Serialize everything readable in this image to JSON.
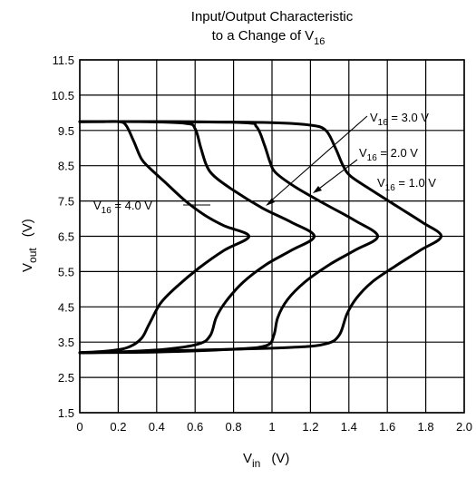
{
  "chart_data": {
    "type": "line",
    "title": {
      "line1": "Input/Output Characteristic",
      "line2_prefix": "to a Change of V",
      "line2_sub": "16"
    },
    "xlabel": {
      "main": "V",
      "sub": "in",
      "unit": "(V)"
    },
    "ylabel": {
      "main": "V",
      "sub": "out",
      "unit": "(V)"
    },
    "xlim": [
      0,
      2.0
    ],
    "ylim": [
      1.5,
      11.5
    ],
    "x_ticks": [
      "0",
      "0.2",
      "0.4",
      "0.6",
      "0.8",
      "1",
      "1.2",
      "1.4",
      "1.6",
      "1.8",
      "2.0"
    ],
    "y_ticks": [
      "1.5",
      "2.5",
      "3.5",
      "4.5",
      "5.5",
      "6.5",
      "7.5",
      "8.5",
      "9.5",
      "10.5",
      "11.5"
    ],
    "grid": true,
    "series": [
      {
        "name": "V16 = 4.0 V",
        "label": {
          "main": "V",
          "sub": "16",
          "rest": " = 4.0 V"
        },
        "points": [
          [
            0.0,
            9.75
          ],
          [
            0.1,
            9.75
          ],
          [
            0.2,
            9.75
          ],
          [
            0.24,
            9.65
          ],
          [
            0.28,
            9.2
          ],
          [
            0.32,
            8.7
          ],
          [
            0.36,
            8.45
          ],
          [
            0.45,
            8.0
          ],
          [
            0.55,
            7.5
          ],
          [
            0.65,
            7.1
          ],
          [
            0.75,
            6.8
          ],
          [
            0.88,
            6.5
          ],
          [
            0.75,
            6.1
          ],
          [
            0.62,
            5.6
          ],
          [
            0.5,
            5.05
          ],
          [
            0.42,
            4.6
          ],
          [
            0.36,
            4.0
          ],
          [
            0.32,
            3.6
          ],
          [
            0.25,
            3.35
          ],
          [
            0.15,
            3.25
          ],
          [
            0.0,
            3.2
          ]
        ]
      },
      {
        "name": "V16 = 3.0 V",
        "label": {
          "main": "V",
          "sub": "16",
          "rest": " = 3.0 V"
        },
        "points": [
          [
            0.0,
            9.75
          ],
          [
            0.3,
            9.75
          ],
          [
            0.55,
            9.7
          ],
          [
            0.6,
            9.55
          ],
          [
            0.63,
            9.0
          ],
          [
            0.66,
            8.5
          ],
          [
            0.7,
            8.2
          ],
          [
            0.8,
            7.8
          ],
          [
            0.95,
            7.3
          ],
          [
            1.1,
            6.9
          ],
          [
            1.22,
            6.5
          ],
          [
            1.1,
            6.1
          ],
          [
            0.97,
            5.7
          ],
          [
            0.85,
            5.2
          ],
          [
            0.76,
            4.65
          ],
          [
            0.71,
            4.2
          ],
          [
            0.68,
            3.7
          ],
          [
            0.62,
            3.45
          ],
          [
            0.45,
            3.3
          ],
          [
            0.2,
            3.22
          ],
          [
            0.0,
            3.2
          ]
        ]
      },
      {
        "name": "V16 = 2.0 V",
        "label": {
          "main": "V",
          "sub": "16",
          "rest": " = 2.0 V"
        },
        "points": [
          [
            0.0,
            9.75
          ],
          [
            0.4,
            9.75
          ],
          [
            0.85,
            9.72
          ],
          [
            0.92,
            9.6
          ],
          [
            0.96,
            9.1
          ],
          [
            0.99,
            8.6
          ],
          [
            1.02,
            8.3
          ],
          [
            1.12,
            7.9
          ],
          [
            1.28,
            7.4
          ],
          [
            1.43,
            6.95
          ],
          [
            1.55,
            6.5
          ],
          [
            1.43,
            6.1
          ],
          [
            1.3,
            5.7
          ],
          [
            1.17,
            5.2
          ],
          [
            1.08,
            4.7
          ],
          [
            1.03,
            4.2
          ],
          [
            1.01,
            3.7
          ],
          [
            0.97,
            3.4
          ],
          [
            0.8,
            3.3
          ],
          [
            0.4,
            3.22
          ],
          [
            0.0,
            3.2
          ]
        ]
      },
      {
        "name": "V16 = 1.0 V",
        "label": {
          "main": "V",
          "sub": "16",
          "rest": " = 1.0 V"
        },
        "points": [
          [
            0.0,
            9.75
          ],
          [
            0.5,
            9.75
          ],
          [
            1.0,
            9.72
          ],
          [
            1.2,
            9.65
          ],
          [
            1.28,
            9.5
          ],
          [
            1.33,
            9.0
          ],
          [
            1.37,
            8.5
          ],
          [
            1.41,
            8.2
          ],
          [
            1.52,
            7.8
          ],
          [
            1.65,
            7.35
          ],
          [
            1.78,
            6.9
          ],
          [
            1.88,
            6.5
          ],
          [
            1.77,
            6.1
          ],
          [
            1.64,
            5.65
          ],
          [
            1.52,
            5.2
          ],
          [
            1.44,
            4.75
          ],
          [
            1.39,
            4.3
          ],
          [
            1.35,
            3.7
          ],
          [
            1.28,
            3.45
          ],
          [
            1.1,
            3.35
          ],
          [
            0.6,
            3.27
          ],
          [
            0.2,
            3.22
          ],
          [
            0.0,
            3.2
          ]
        ]
      }
    ]
  }
}
